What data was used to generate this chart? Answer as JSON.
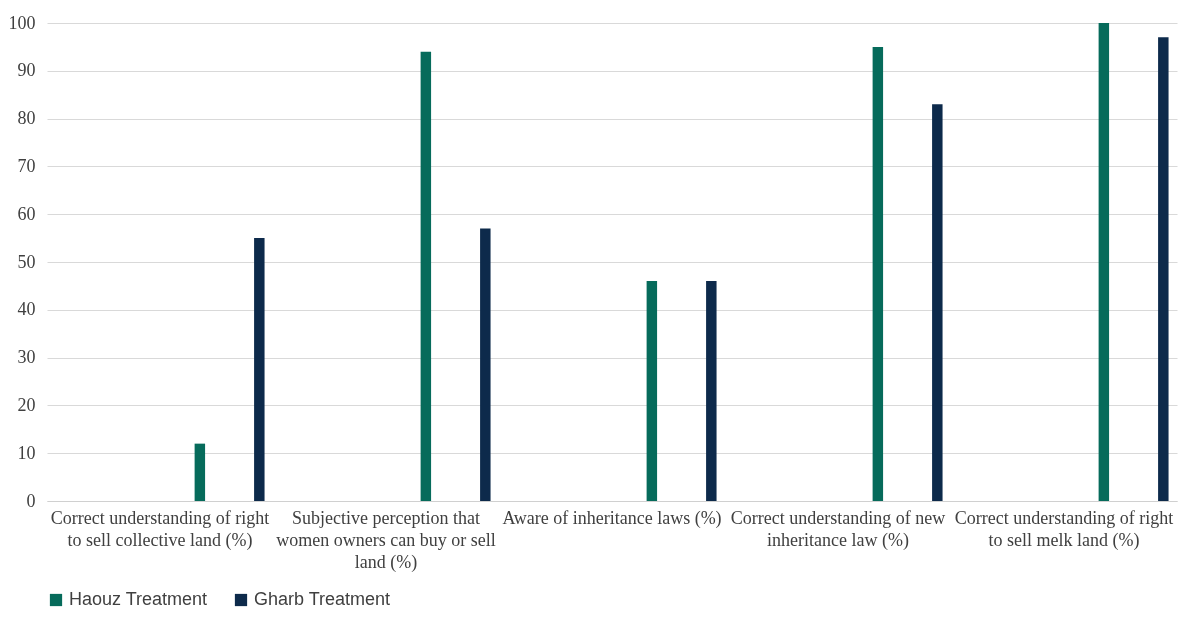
{
  "chart_data": {
    "type": "bar",
    "categories": [
      "Correct understanding of right to sell collective land (%)",
      "Subjective perception that women owners can buy or sell land (%)",
      "Aware of inheritance laws (%)",
      "Correct understanding of new inheritance law (%)",
      "Correct understanding of right to sell melk land (%)"
    ],
    "series": [
      {
        "name": "Haouz Treatment",
        "color": "#066b5b",
        "values": [
          12,
          94,
          46,
          95,
          100
        ]
      },
      {
        "name": "Gharb Treatment",
        "color": "#0d2a4b",
        "values": [
          55,
          57,
          46,
          83,
          97
        ]
      }
    ],
    "ylim": [
      0,
      100
    ],
    "yticks": [
      0,
      10,
      20,
      30,
      40,
      50,
      60,
      70,
      80,
      90,
      100
    ],
    "grid": "y",
    "legend": "bottom"
  }
}
